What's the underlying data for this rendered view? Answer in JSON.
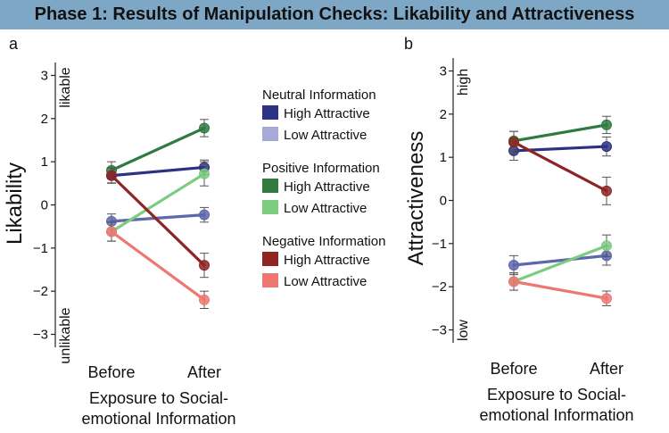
{
  "title": "Phase 1: Results of Manipulation Checks: Likability and Attractiveness",
  "legend": {
    "groups": [
      {
        "title": "Neutral Information",
        "items": [
          {
            "label": "High Attractive",
            "color": "#2b3380"
          },
          {
            "label": "Low Attractive",
            "color": "#a7aad6"
          }
        ]
      },
      {
        "title": "Positive Information",
        "items": [
          {
            "label": "High Attractive",
            "color": "#2e7a3f"
          },
          {
            "label": "Low Attractive",
            "color": "#7ccc80"
          }
        ]
      },
      {
        "title": "Negative Information",
        "items": [
          {
            "label": "High Attractive",
            "color": "#8e2424"
          },
          {
            "label": "Low Attractive",
            "color": "#ee7772"
          }
        ]
      }
    ]
  },
  "chart_data": [
    {
      "type": "line",
      "panel": "a",
      "title": "",
      "xlabel": [
        "Exposure to Social-",
        "emotional Information"
      ],
      "ylabel": "Likability",
      "y_top_annotation": "likable",
      "y_bottom_annotation": "unlikable",
      "categories": [
        "Before",
        "After"
      ],
      "ylim": [
        -3.3,
        3.3
      ],
      "yticks": [
        3,
        2,
        1,
        0,
        -1,
        -2,
        -3
      ],
      "ytick_labels": [
        "3",
        "2",
        "1",
        "0",
        "−1",
        "−2",
        "−3"
      ],
      "series": [
        {
          "name": "Neutral – High Attractive",
          "color": "#2b3380",
          "values": [
            0.68,
            0.87
          ],
          "err": [
            0.17,
            0.17
          ]
        },
        {
          "name": "Neutral – Low Attractive",
          "color": "#5d67ad",
          "values": [
            -0.38,
            -0.23
          ],
          "err": [
            0.17,
            0.17
          ]
        },
        {
          "name": "Positive – High Attractive",
          "color": "#2e7a3f",
          "values": [
            0.8,
            1.78
          ],
          "err": [
            0.2,
            0.2
          ]
        },
        {
          "name": "Positive – Low Attractive",
          "color": "#7ccc80",
          "values": [
            -0.62,
            0.72
          ],
          "err": [
            0.22,
            0.28
          ]
        },
        {
          "name": "Negative – High Attractive",
          "color": "#8e2424",
          "values": [
            0.68,
            -1.4
          ],
          "err": [
            0.18,
            0.28
          ]
        },
        {
          "name": "Negative – Low Attractive",
          "color": "#ee7772",
          "values": [
            -0.62,
            -2.2
          ],
          "err": [
            0.22,
            0.2
          ]
        }
      ]
    },
    {
      "type": "line",
      "panel": "b",
      "title": "",
      "xlabel": [
        "Exposure to Social-",
        "emotional Information"
      ],
      "ylabel": "Attractiveness",
      "y_top_annotation": "high",
      "y_bottom_annotation": "low",
      "categories": [
        "Before",
        "After"
      ],
      "ylim": [
        -3.3,
        3.3
      ],
      "yticks": [
        3,
        2,
        1,
        0,
        -1,
        -2,
        -3
      ],
      "ytick_labels": [
        "3",
        "2",
        "1",
        "0",
        "−1",
        "−2",
        "−3"
      ],
      "series": [
        {
          "name": "Neutral – High Attractive",
          "color": "#2b3380",
          "values": [
            1.15,
            1.25
          ],
          "err": [
            0.22,
            0.22
          ]
        },
        {
          "name": "Neutral – Low Attractive",
          "color": "#5d67ad",
          "values": [
            -1.5,
            -1.28
          ],
          "err": [
            0.22,
            0.22
          ]
        },
        {
          "name": "Positive – High Attractive",
          "color": "#2e7a3f",
          "values": [
            1.38,
            1.75
          ],
          "err": [
            0.22,
            0.2
          ]
        },
        {
          "name": "Positive – Low Attractive",
          "color": "#7ccc80",
          "values": [
            -1.88,
            -1.05
          ],
          "err": [
            0.2,
            0.25
          ]
        },
        {
          "name": "Negative – High Attractive",
          "color": "#8e2424",
          "values": [
            1.35,
            0.22
          ],
          "err": [
            0.25,
            0.32
          ]
        },
        {
          "name": "Negative – Low Attractive",
          "color": "#ee7772",
          "values": [
            -1.88,
            -2.27
          ],
          "err": [
            0.2,
            0.17
          ]
        }
      ]
    }
  ]
}
